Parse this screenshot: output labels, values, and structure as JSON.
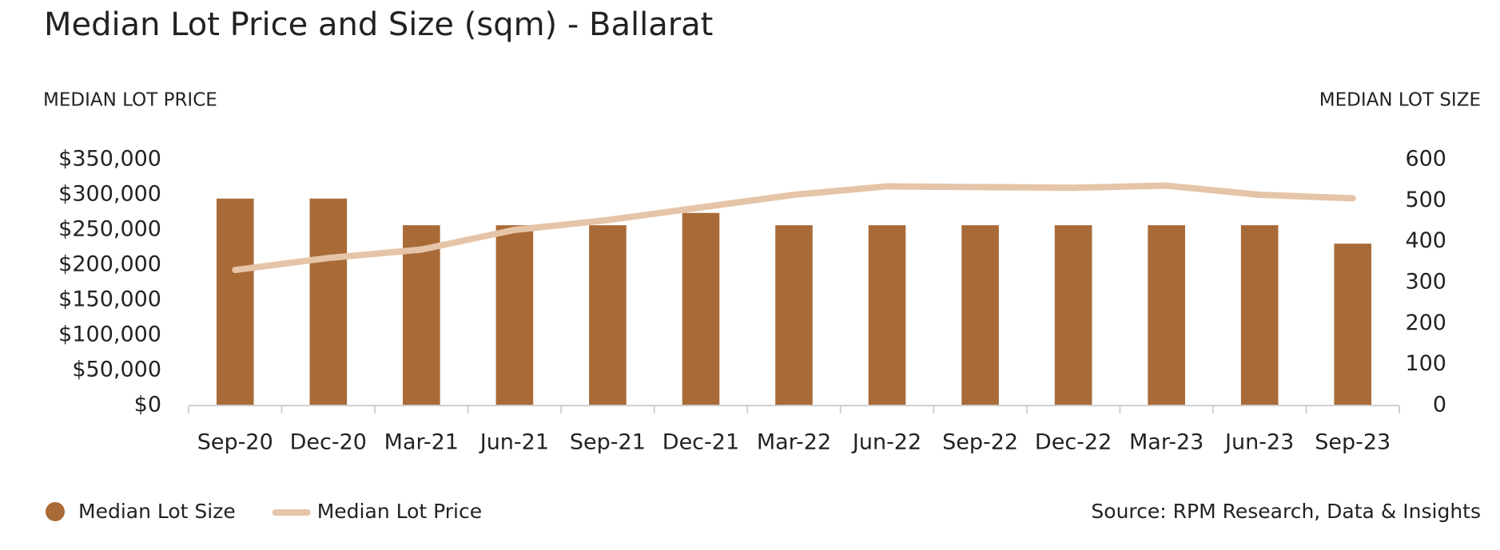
{
  "chart_data": {
    "type": "bar-line",
    "title": "Median Lot Price and Size (sqm) - Ballarat",
    "y_label": "MEDIAN LOT PRICE",
    "y2_label": "MEDIAN LOT SIZE",
    "source": "Source: RPM Research, Data & Insights",
    "categories": [
      "Sep-20",
      "Dec-20",
      "Mar-21",
      "Jun-21",
      "Sep-21",
      "Dec-21",
      "Mar-22",
      "Jun-22",
      "Sep-22",
      "Dec-22",
      "Mar-23",
      "Jun-23",
      "Sep-23"
    ],
    "series": [
      {
        "name": "Median Lot Size",
        "type": "bar",
        "axis": "y2",
        "color": "#a86b38",
        "values": [
          505,
          505,
          440,
          440,
          440,
          470,
          440,
          440,
          440,
          440,
          440,
          440,
          395
        ]
      },
      {
        "name": "Median Lot Price",
        "type": "line",
        "axis": "y",
        "color": "#e6c4a8",
        "values": [
          193000,
          210000,
          222000,
          250000,
          264000,
          282000,
          300000,
          312000,
          311000,
          310000,
          313000,
          300000,
          295000
        ]
      }
    ],
    "ylim": [
      0,
      350000
    ],
    "yticks": [
      {
        "value": 0,
        "label": "$0"
      },
      {
        "value": 50000,
        "label": "$50,000"
      },
      {
        "value": 100000,
        "label": "$100,000"
      },
      {
        "value": 150000,
        "label": "$150,000"
      },
      {
        "value": 200000,
        "label": "$200,000"
      },
      {
        "value": 250000,
        "label": "$250,000"
      },
      {
        "value": 300000,
        "label": "$300,000"
      },
      {
        "value": 350000,
        "label": "$350,000"
      }
    ],
    "y2lim": [
      0,
      600
    ],
    "y2ticks": [
      0,
      100,
      200,
      300,
      400,
      500,
      600
    ],
    "grid": false,
    "legend": "bottom-left"
  }
}
